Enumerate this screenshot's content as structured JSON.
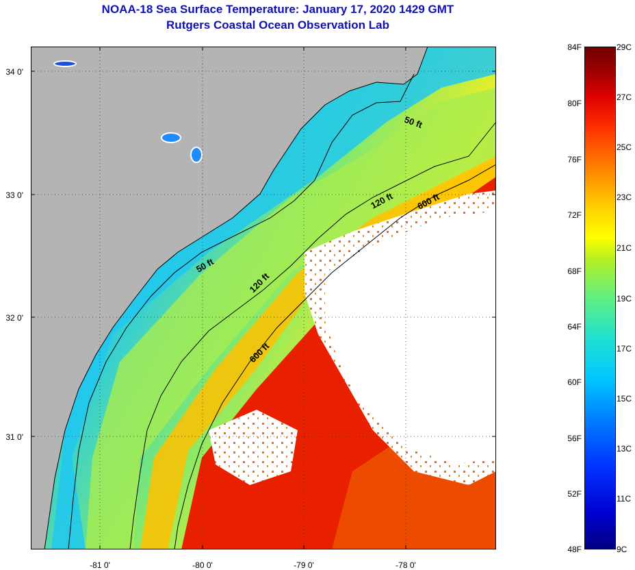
{
  "header": {
    "title_line1": "NOAA-18 Sea Surface Temperature:  January 17, 2020 1429 GMT",
    "title_line2": "Rutgers Coastal Ocean Observation Lab"
  },
  "map": {
    "lat_labels": [
      "34 0'",
      "33 0'",
      "32 0'",
      "31 0'"
    ],
    "lon_labels": [
      "-81 0'",
      "-80 0'",
      "-79 0'",
      "-78 0'"
    ],
    "contour_labels": {
      "c50_north": "50 ft",
      "c50_south": "50 ft",
      "c120_north": "120 ft",
      "c120_south": "120 ft",
      "c600_north": "600 ft",
      "c600_south": "600 ft"
    },
    "colors": {
      "land": "#b4b4b4",
      "cloud": "#ffffff",
      "coast_water": "#1e8cff",
      "shelf_mid": "#20d0f0",
      "shelf_outer": "#b8f040",
      "gulf_stream": "#e82000"
    }
  },
  "colorbar": {
    "f_labels": [
      "84F",
      "80F",
      "76F",
      "72F",
      "68F",
      "64F",
      "60F",
      "56F",
      "52F",
      "48F"
    ],
    "c_labels": [
      "29C",
      "27C",
      "25C",
      "23C",
      "21C",
      "19C",
      "17C",
      "15C",
      "13C",
      "11C",
      "9C"
    ],
    "range_f": [
      48,
      84
    ],
    "range_c": [
      9,
      29
    ]
  }
}
